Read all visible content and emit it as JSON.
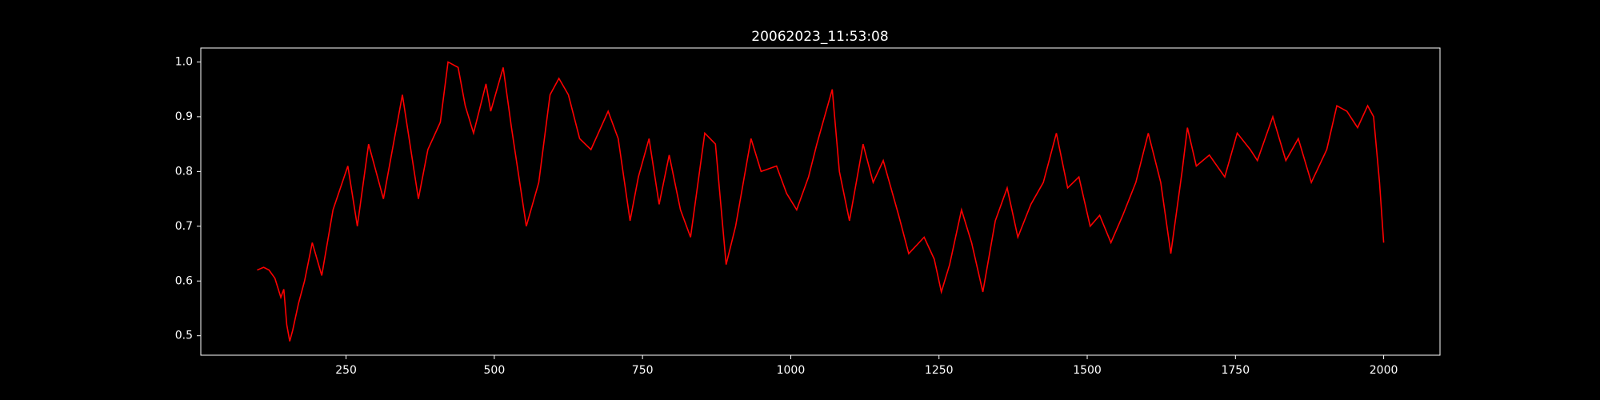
{
  "chart_data": {
    "type": "line",
    "title": "20062023_11:53:08",
    "x": [
      100,
      111,
      120,
      130,
      140,
      145,
      150,
      155,
      160,
      170,
      180,
      193,
      209,
      228,
      253,
      269,
      288,
      313,
      345,
      372,
      388,
      409,
      422,
      439,
      451,
      465,
      486,
      494,
      515,
      529,
      554,
      575,
      594,
      609,
      625,
      644,
      663,
      692,
      709,
      729,
      743,
      761,
      778,
      795,
      814,
      831,
      855,
      873,
      891,
      907,
      933,
      950,
      976,
      993,
      1010,
      1030,
      1044,
      1070,
      1082,
      1099,
      1122,
      1139,
      1156,
      1182,
      1199,
      1225,
      1242,
      1254,
      1268,
      1288,
      1305,
      1324,
      1345,
      1365,
      1383,
      1405,
      1426,
      1448,
      1467,
      1486,
      1505,
      1521,
      1540,
      1560,
      1582,
      1603,
      1624,
      1641,
      1660,
      1669,
      1684,
      1706,
      1732,
      1753,
      1775,
      1787,
      1813,
      1835,
      1856,
      1878,
      1904,
      1921,
      1938,
      1956,
      1973,
      1983,
      1993,
      2000
    ],
    "series": [
      {
        "color": "#ff0000",
        "values": [
          0.62,
          0.625,
          0.62,
          0.605,
          0.57,
          0.585,
          0.52,
          0.49,
          0.51,
          0.56,
          0.6,
          0.67,
          0.61,
          0.73,
          0.81,
          0.7,
          0.85,
          0.75,
          0.94,
          0.75,
          0.84,
          0.89,
          1.0,
          0.99,
          0.92,
          0.87,
          0.96,
          0.91,
          0.99,
          0.88,
          0.7,
          0.78,
          0.94,
          0.97,
          0.94,
          0.86,
          0.84,
          0.91,
          0.86,
          0.71,
          0.79,
          0.86,
          0.74,
          0.83,
          0.73,
          0.68,
          0.87,
          0.85,
          0.63,
          0.7,
          0.86,
          0.8,
          0.81,
          0.76,
          0.73,
          0.79,
          0.85,
          0.95,
          0.8,
          0.71,
          0.85,
          0.78,
          0.82,
          0.72,
          0.65,
          0.68,
          0.64,
          0.58,
          0.63,
          0.73,
          0.67,
          0.58,
          0.71,
          0.77,
          0.68,
          0.74,
          0.78,
          0.87,
          0.77,
          0.79,
          0.7,
          0.72,
          0.67,
          0.72,
          0.78,
          0.87,
          0.78,
          0.65,
          0.8,
          0.88,
          0.81,
          0.83,
          0.79,
          0.87,
          0.84,
          0.82,
          0.9,
          0.82,
          0.86,
          0.78,
          0.84,
          0.92,
          0.91,
          0.88,
          0.92,
          0.9,
          0.78,
          0.67
        ]
      }
    ],
    "xlim": [
      5,
      2095
    ],
    "ylim": [
      0.4645,
      1.0255
    ],
    "xticks": [
      250,
      500,
      750,
      1000,
      1250,
      1500,
      1750,
      2000
    ],
    "yticks": [
      0.5,
      0.6,
      0.7,
      0.8,
      0.9,
      {
        "value": 1.0,
        "label": "1.0"
      }
    ],
    "grid": false
  }
}
